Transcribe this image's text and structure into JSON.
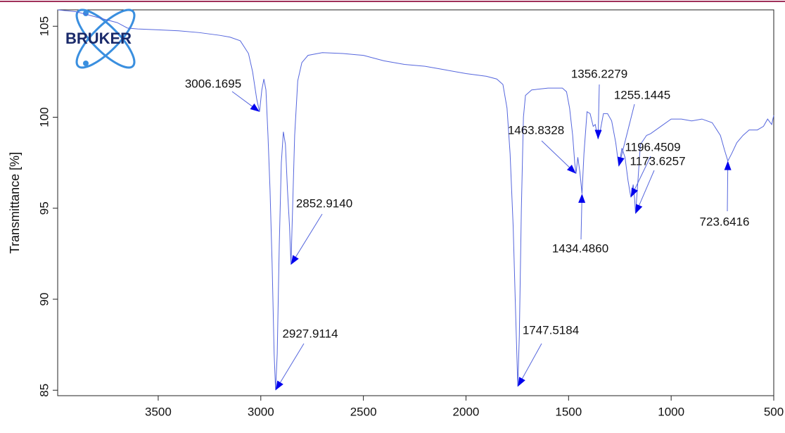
{
  "chart_data": {
    "type": "line",
    "logo": "BRUKER",
    "ylabel": "Transmittance [%]",
    "xlim": [
      3990,
      500
    ],
    "ylim": [
      84.7,
      105.9
    ],
    "xticks": [
      3500,
      3000,
      2500,
      2000,
      1500,
      1000,
      500
    ],
    "yticks": [
      85,
      90,
      95,
      100,
      105
    ],
    "color": "#5566dd",
    "x": [
      3990,
      3900,
      3800,
      3700,
      3650,
      3600,
      3500,
      3400,
      3300,
      3200,
      3150,
      3100,
      3060,
      3040,
      3020,
      3006.17,
      2995,
      2985,
      2975,
      2965,
      2955,
      2945,
      2935,
      2927.91,
      2920,
      2910,
      2900,
      2890,
      2880,
      2870,
      2860,
      2852.91,
      2845,
      2835,
      2820,
      2800,
      2770,
      2700,
      2600,
      2500,
      2400,
      2300,
      2200,
      2100,
      2000,
      1900,
      1850,
      1820,
      1800,
      1785,
      1770,
      1760,
      1747.52,
      1740,
      1730,
      1720,
      1710,
      1680,
      1600,
      1530,
      1510,
      1495,
      1480,
      1470,
      1463.83,
      1455,
      1445,
      1434.49,
      1425,
      1410,
      1395,
      1380,
      1370,
      1356.23,
      1345,
      1330,
      1310,
      1290,
      1270,
      1255.14,
      1240,
      1225,
      1210,
      1196.45,
      1185,
      1178,
      1173.63,
      1165,
      1150,
      1120,
      1100,
      1050,
      1000,
      950,
      900,
      850,
      800,
      760,
      740,
      723.64,
      705,
      680,
      650,
      620,
      580,
      550,
      530,
      510,
      500
    ],
    "values": [
      105.9,
      105.8,
      105.5,
      105.2,
      104.9,
      104.85,
      104.8,
      104.75,
      104.65,
      104.5,
      104.4,
      104.2,
      103.5,
      102.5,
      101,
      100.3,
      101.5,
      102.1,
      101.5,
      99,
      96,
      92,
      87,
      85.0,
      87,
      93,
      97.5,
      99.2,
      98.5,
      96,
      94,
      91.9,
      95,
      99,
      102,
      103,
      103.4,
      103.55,
      103.5,
      103.4,
      103.1,
      102.9,
      102.8,
      102.6,
      102.4,
      102.25,
      102.1,
      101.8,
      100.5,
      98,
      94,
      90,
      85.2,
      88,
      95,
      100,
      101.2,
      101.5,
      101.6,
      101.6,
      101.4,
      100.5,
      99,
      97.5,
      96.9,
      97.8,
      97,
      95.8,
      98,
      100.3,
      100.2,
      99.5,
      99.6,
      98.8,
      99.3,
      100.2,
      100.2,
      99.8,
      98.6,
      97.3,
      98.3,
      97.8,
      96.5,
      95.6,
      96.3,
      95.5,
      94.7,
      96.0,
      98.5,
      99.0,
      99.1,
      99.5,
      99.9,
      99.9,
      99.8,
      99.9,
      99.7,
      99.0,
      98.2,
      97.6,
      98.0,
      98.6,
      99.0,
      99.3,
      99.3,
      99.5,
      99.9,
      99.6,
      100.1
    ],
    "annotations": [
      {
        "label": "3006.1695",
        "x": 3006.1695,
        "y": 100.3
      },
      {
        "label": "2927.9114",
        "x": 2927.9114,
        "y": 85.0
      },
      {
        "label": "2852.9140",
        "x": 2852.914,
        "y": 91.9
      },
      {
        "label": "1747.5184",
        "x": 1747.5184,
        "y": 85.2
      },
      {
        "label": "1463.8328",
        "x": 1463.8328,
        "y": 96.9
      },
      {
        "label": "1434.4860",
        "x": 1434.486,
        "y": 95.8
      },
      {
        "label": "1356.2279",
        "x": 1356.2279,
        "y": 98.8
      },
      {
        "label": "1255.1445",
        "x": 1255.1445,
        "y": 97.3
      },
      {
        "label": "1196.4509",
        "x": 1196.4509,
        "y": 95.6
      },
      {
        "label": "1173.6257",
        "x": 1173.6257,
        "y": 94.7
      },
      {
        "label": "723.6416",
        "x": 723.6416,
        "y": 97.6
      }
    ]
  }
}
